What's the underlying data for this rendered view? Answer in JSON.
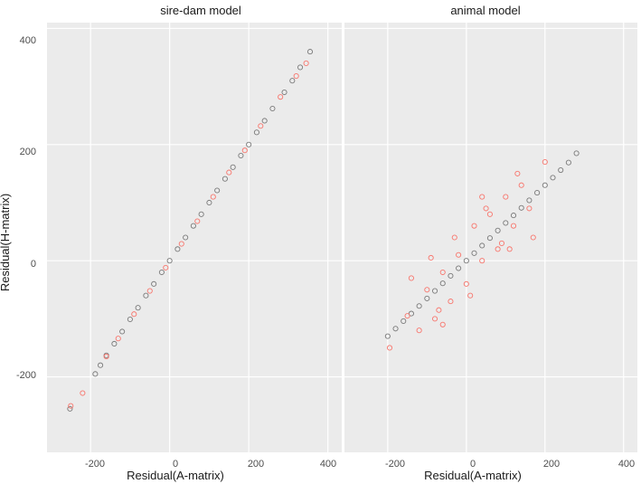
{
  "chart_data": {
    "type": "scatter",
    "xlabel": "Residual(A-matrix)",
    "ylabel": "Residual(H-matrix)",
    "xlim": [
      -310,
      435
    ],
    "ylim": [
      -330,
      410
    ],
    "x_ticks": [
      -200,
      0,
      200,
      400
    ],
    "y_ticks": [
      -200,
      0,
      200,
      400
    ],
    "x_tick_labels": [
      "-200",
      "0",
      "200",
      "400"
    ],
    "y_tick_labels": [
      "-200",
      "0",
      "200",
      "400"
    ],
    "grid": true,
    "legend": "none",
    "colors": {
      "series_red": "#f8766d",
      "series_grey": "#7a7a7a",
      "panel_bg": "#ebebeb",
      "grid": "#ffffff"
    },
    "panels": [
      {
        "title": "sire-dam model",
        "series": [
          {
            "color": "#7a7a7a",
            "x": [
              -252,
              -188,
              -175,
              -160,
              -140,
              -120,
              -100,
              -80,
              -60,
              -40,
              -20,
              0,
              20,
              40,
              60,
              80,
              100,
              120,
              140,
              160,
              180,
              200,
              220,
              240,
              260,
              290,
              310,
              330,
              355
            ],
            "y": [
              -255,
              -195,
              -180,
              -163,
              -143,
              -122,
              -101,
              -81,
              -60,
              -40,
              -20,
              0,
              20,
              40,
              60,
              80,
              100,
              121,
              141,
              161,
              181,
              200,
              221,
              241,
              262,
              290,
              310,
              333,
              360
            ]
          },
          {
            "color": "#f8766d",
            "x": [
              -250,
              -220,
              -160,
              -130,
              -90,
              -50,
              -10,
              30,
              70,
              110,
              150,
              190,
              230,
              280,
              320,
              345
            ],
            "y": [
              -250,
              -228,
              -165,
              -134,
              -92,
              -52,
              -12,
              29,
              68,
              110,
              152,
              190,
              232,
              282,
              318,
              340
            ]
          }
        ]
      },
      {
        "title": "animal model",
        "series": [
          {
            "color": "#7a7a7a",
            "x": [
              -200,
              -180,
              -160,
              -140,
              -120,
              -100,
              -80,
              -60,
              -40,
              -20,
              0,
              20,
              40,
              60,
              80,
              100,
              120,
              140,
              160,
              180,
              200,
              220,
              240,
              260,
              280
            ],
            "y": [
              -130,
              -117,
              -104,
              -91,
              -78,
              -65,
              -52,
              -39,
              -26,
              -13,
              0,
              13,
              26,
              39,
              52,
              65,
              78,
              91,
              104,
              117,
              130,
              143,
              156,
              169,
              185
            ]
          },
          {
            "color": "#f8766d",
            "x": [
              -195,
              -150,
              -120,
              -100,
              -80,
              -60,
              -40,
              -20,
              0,
              20,
              40,
              60,
              80,
              100,
              120,
              140,
              160,
              200,
              -90,
              -70,
              -30,
              10,
              50,
              90,
              130,
              -140,
              170,
              -60,
              40,
              110
            ],
            "y": [
              -150,
              -95,
              -120,
              -50,
              -100,
              -20,
              -70,
              10,
              -40,
              60,
              0,
              80,
              20,
              110,
              60,
              130,
              90,
              170,
              5,
              -85,
              40,
              -60,
              90,
              30,
              150,
              -30,
              40,
              -110,
              110,
              20
            ]
          }
        ]
      }
    ]
  }
}
